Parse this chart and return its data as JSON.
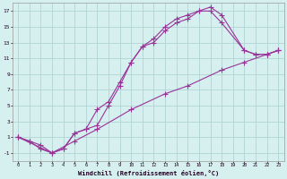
{
  "title": "",
  "xlabel": "Windchill (Refroidissement éolien,°C)",
  "ylabel": "",
  "bg_color": "#d6f0f0",
  "line_color": "#993399",
  "grid_color": "#b0d4d4",
  "xlim": [
    -0.5,
    23.5
  ],
  "ylim": [
    -2,
    18
  ],
  "xticks": [
    0,
    1,
    2,
    3,
    4,
    5,
    6,
    7,
    8,
    9,
    10,
    11,
    12,
    13,
    14,
    15,
    16,
    17,
    18,
    19,
    20,
    21,
    22,
    23
  ],
  "yticks": [
    -1,
    1,
    3,
    5,
    7,
    9,
    11,
    13,
    15,
    17
  ],
  "line1_x": [
    0,
    1,
    2,
    3,
    4,
    5,
    6,
    7,
    8,
    9,
    10,
    11,
    12,
    13,
    14,
    15,
    16,
    17,
    18,
    20,
    21,
    22,
    23
  ],
  "line1_y": [
    1,
    0.5,
    -0.5,
    -1,
    -0.5,
    1.5,
    2.0,
    4.5,
    5.5,
    8.0,
    10.5,
    12.5,
    13.0,
    14.5,
    15.5,
    16.0,
    17.0,
    17.5,
    16.5,
    12.0,
    11.5,
    11.5,
    12.0
  ],
  "line2_x": [
    0,
    3,
    4,
    5,
    6,
    7,
    8,
    9,
    10,
    11,
    12,
    13,
    14,
    15,
    16,
    17,
    18,
    20,
    21,
    22,
    23
  ],
  "line2_y": [
    1,
    -1,
    -0.5,
    1.5,
    2.0,
    2.5,
    5.0,
    7.5,
    10.5,
    12.5,
    13.5,
    15.0,
    16.0,
    16.5,
    17.0,
    17.0,
    15.5,
    12.0,
    11.5,
    11.5,
    12.0
  ],
  "line3_x": [
    0,
    1,
    2,
    3,
    5,
    7,
    10,
    13,
    15,
    18,
    20,
    22,
    23
  ],
  "line3_y": [
    1,
    0.5,
    0.0,
    -1,
    0.5,
    2.0,
    4.5,
    6.5,
    7.5,
    9.5,
    10.5,
    11.5,
    12.0
  ]
}
